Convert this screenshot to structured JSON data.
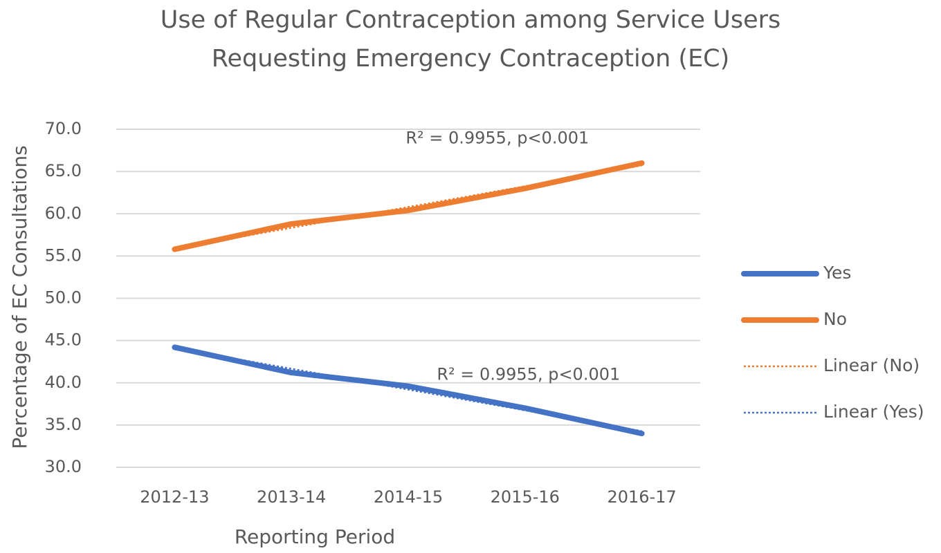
{
  "chart_data": {
    "type": "line",
    "title": [
      "Use of Regular Contraception among Service Users",
      "Requesting Emergency Contraception (EC)"
    ],
    "x_label": "Reporting Period",
    "y_label": "Percentage of EC Consultations",
    "categories": [
      "2012-13",
      "2013-14",
      "2014-15",
      "2015-16",
      "2016-17"
    ],
    "series": [
      {
        "name": "Yes",
        "color": "#4472c4",
        "values": [
          44.2,
          41.2,
          39.6,
          37.0,
          34.0
        ]
      },
      {
        "name": "No",
        "color": "#ed7d31",
        "values": [
          55.8,
          58.8,
          60.4,
          63.0,
          66.0
        ]
      }
    ],
    "trendlines": [
      {
        "name": "Linear (No)",
        "of": "No",
        "color": "#ed7d31",
        "style": "dotted"
      },
      {
        "name": "Linear (Yes)",
        "of": "Yes",
        "color": "#4472c4",
        "style": "dotted"
      }
    ],
    "annotations": [
      {
        "text": "R² = 0.9955, p<0.001",
        "of": "No"
      },
      {
        "text": "R² = 0.9955, p<0.001",
        "of": "Yes"
      }
    ],
    "ylim": [
      30,
      70
    ],
    "yticks": [
      {
        "value": 30,
        "label": "30.0"
      },
      {
        "value": 35,
        "label": "35.0"
      },
      {
        "value": 40,
        "label": "40.0"
      },
      {
        "value": 45,
        "label": "45.0"
      },
      {
        "value": 50,
        "label": "50.0"
      },
      {
        "value": 55,
        "label": "55.0"
      },
      {
        "value": 60,
        "label": "60.0"
      },
      {
        "value": 65,
        "label": "65.0"
      },
      {
        "value": 70,
        "label": "70.0"
      }
    ],
    "grid": true,
    "legend": "right"
  }
}
